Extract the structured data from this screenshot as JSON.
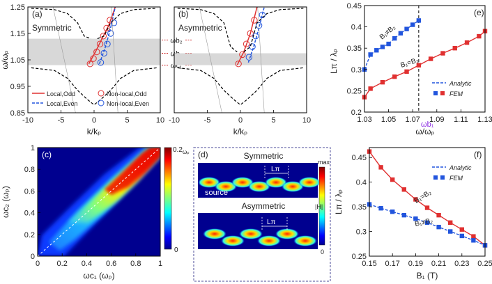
{
  "chart_data": [
    {
      "panel": "(a)",
      "type": "line",
      "title": "Symmetric",
      "xlabel": "k/kₚ",
      "ylabel": "ω/ωₚ",
      "xlim": [
        -10,
        10
      ],
      "ylim": [
        0.85,
        1.25
      ],
      "xticks": [
        "-10",
        "-5",
        "0",
        "5",
        "10"
      ],
      "yticks": [
        "0.85",
        "0.95",
        "1.05",
        "1.15",
        "1.25"
      ],
      "band": [
        1.03,
        1.13
      ],
      "band_labels": [
        "ωb₂",
        "ωb₁",
        "ωc₁"
      ],
      "band_label_values": [
        1.125,
        1.075,
        1.03
      ],
      "legend": [
        "Local,Odd",
        "Local,Even",
        "Non-local,Odd",
        "Non-local,Even"
      ],
      "series": [
        {
          "name": "Local,Odd",
          "style": "solid-red",
          "x": [
            -0.8,
            0.2,
            1.2,
            2.2,
            3.2
          ],
          "y": [
            1.035,
            1.08,
            1.13,
            1.18,
            1.25
          ]
        },
        {
          "name": "Local,Even",
          "style": "dashed-blue",
          "x": [
            0.8,
            1.6,
            2.4,
            3.2
          ],
          "y": [
            1.035,
            1.09,
            1.16,
            1.25
          ]
        },
        {
          "name": "Non-local,Odd",
          "style": "circle-red",
          "x": [
            -0.6,
            -0.1,
            0.4,
            0.9,
            1.4,
            1.9,
            2.4
          ],
          "y": [
            1.035,
            1.055,
            1.08,
            1.11,
            1.14,
            1.17,
            1.2
          ]
        },
        {
          "name": "Non-local,Even",
          "style": "circle-blue",
          "x": [
            1.0,
            1.5,
            2.0,
            2.5,
            3.0
          ],
          "y": [
            1.04,
            1.075,
            1.11,
            1.15,
            1.19
          ]
        },
        {
          "name": "upper-band-left",
          "style": "dashed-black",
          "x": [
            -9.5,
            -6,
            -4,
            -2.5,
            -1.5,
            -0.5
          ],
          "y": [
            1.245,
            1.24,
            1.225,
            1.19,
            1.14,
            1.13
          ]
        },
        {
          "name": "upper-band-right",
          "style": "dashed-black",
          "x": [
            0.5,
            1.5,
            2.5,
            4,
            6,
            9.5
          ],
          "y": [
            1.13,
            1.14,
            1.19,
            1.225,
            1.24,
            1.245
          ]
        },
        {
          "name": "lower-band",
          "style": "dashed-black",
          "x": [
            -9.5,
            -6,
            -4,
            -2.5,
            -1,
            0,
            1,
            2.5,
            4,
            6,
            9.5
          ],
          "y": [
            1.02,
            1.01,
            0.98,
            0.935,
            0.9,
            0.88,
            0.9,
            0.935,
            0.98,
            1.01,
            1.02
          ]
        },
        {
          "name": "light-line-1",
          "style": "thin-gray",
          "x": [
            -6.2,
            -2.8
          ],
          "y": [
            1.25,
            0.85
          ]
        },
        {
          "name": "light-line-2",
          "style": "thin-gray",
          "x": [
            2.6,
            3.6
          ],
          "y": [
            1.25,
            0.85
          ]
        }
      ]
    },
    {
      "panel": "(b)",
      "type": "line",
      "title": "Asymmetric",
      "xlabel": "k/kₚ",
      "xlim": [
        -10,
        10
      ],
      "ylim": [
        0.85,
        1.25
      ],
      "xticks": [
        "-10",
        "-5",
        "0",
        "5",
        "10"
      ],
      "band": [
        1.03,
        1.075
      ],
      "series": [
        {
          "name": "Local,Odd",
          "style": "solid-red",
          "x": [
            -0.5,
            0.5,
            1.5,
            2.5
          ],
          "y": [
            1.03,
            1.08,
            1.15,
            1.25
          ]
        },
        {
          "name": "Local,Even",
          "style": "dashed-blue",
          "x": [
            1.2,
            2.0,
            2.8,
            3.6
          ],
          "y": [
            1.04,
            1.1,
            1.17,
            1.25
          ]
        },
        {
          "name": "Non-local,Odd",
          "style": "circle-red",
          "x": [
            -0.3,
            0.3,
            0.9,
            1.5,
            2.1
          ],
          "y": [
            1.035,
            1.07,
            1.11,
            1.15,
            1.2
          ]
        },
        {
          "name": "Non-local,Even",
          "style": "circle-blue",
          "x": [
            1.3,
            1.8,
            2.3,
            2.8,
            3.3
          ],
          "y": [
            1.06,
            1.1,
            1.14,
            1.18,
            1.22
          ]
        },
        {
          "name": "upper-band-left",
          "style": "dashed-black",
          "x": [
            -9.5,
            -6,
            -4,
            -2.5,
            -1.5,
            -0.5
          ],
          "y": [
            1.245,
            1.24,
            1.225,
            1.19,
            1.1,
            1.08
          ]
        },
        {
          "name": "upper-band-right",
          "style": "dashed-black",
          "x": [
            0.5,
            1.5,
            2.5,
            4,
            6,
            9.5
          ],
          "y": [
            1.08,
            1.1,
            1.19,
            1.225,
            1.24,
            1.245
          ]
        },
        {
          "name": "lower-band",
          "style": "dashed-black",
          "x": [
            -9.5,
            -6,
            -4,
            -2.5,
            -1,
            0,
            1,
            2.5,
            4,
            6,
            9.5
          ],
          "y": [
            1.02,
            1.01,
            0.98,
            0.935,
            0.9,
            0.88,
            0.9,
            0.935,
            0.98,
            1.01,
            1.02
          ]
        },
        {
          "name": "light-line-1",
          "style": "thin-gray",
          "x": [
            -6.2,
            -2.8
          ],
          "y": [
            1.25,
            0.85
          ]
        },
        {
          "name": "light-line-2",
          "style": "thin-gray",
          "x": [
            2.6,
            3.6
          ],
          "y": [
            1.25,
            0.85
          ]
        }
      ]
    },
    {
      "panel": "(e)",
      "type": "line",
      "xlabel": "ω/ωₚ",
      "ylabel": "Lπ / λₚ",
      "xlim": [
        1.03,
        1.13
      ],
      "ylim": [
        0.2,
        0.45
      ],
      "xticks": [
        "1.03",
        "1.05",
        "1.07",
        "1.09",
        "1.11",
        "1.13"
      ],
      "yticks": [
        "0.2",
        "0.25",
        "0.3",
        "0.35",
        "0.4",
        "0.45"
      ],
      "vline": 1.075,
      "vline_label": "ωb₁",
      "annotations": [
        "B₁≠B₂",
        "B₁=B₂"
      ],
      "legend": [
        "Analytic",
        "FEM"
      ],
      "series": [
        {
          "name": "B1≠B2",
          "color": "#2255dd",
          "x": [
            1.03,
            1.035,
            1.04,
            1.045,
            1.05,
            1.055,
            1.06,
            1.065,
            1.07,
            1.075
          ],
          "y": [
            0.3,
            0.335,
            0.345,
            0.353,
            0.36,
            0.373,
            0.385,
            0.395,
            0.405,
            0.415
          ]
        },
        {
          "name": "B1=B2",
          "color": "#e03030",
          "x": [
            1.03,
            1.035,
            1.045,
            1.055,
            1.065,
            1.075,
            1.085,
            1.095,
            1.105,
            1.115,
            1.125,
            1.13
          ],
          "y": [
            0.235,
            0.255,
            0.27,
            0.283,
            0.295,
            0.31,
            0.325,
            0.338,
            0.35,
            0.363,
            0.378,
            0.39
          ]
        }
      ]
    },
    {
      "panel": "(f)",
      "type": "line",
      "xlabel": "B₁ (T)",
      "ylabel": "Lπ / λₚ",
      "xlim": [
        0.15,
        0.25
      ],
      "ylim": [
        0.25,
        0.47
      ],
      "xticks": [
        "0.15",
        "0.17",
        "0.19",
        "0.21",
        "0.23",
        "0.25"
      ],
      "yticks": [
        "0.25",
        "0.3",
        "0.35",
        "0.4",
        "0.45"
      ],
      "annotations": [
        "B₁=B₂",
        "B₁≠B₂"
      ],
      "legend": [
        "Analytic",
        "FEM"
      ],
      "series": [
        {
          "name": "B1=B2",
          "color": "#e03030",
          "x": [
            0.15,
            0.16,
            0.17,
            0.18,
            0.19,
            0.2,
            0.21,
            0.22,
            0.23,
            0.24,
            0.25
          ],
          "y": [
            0.462,
            0.43,
            0.405,
            0.385,
            0.365,
            0.348,
            0.333,
            0.318,
            0.304,
            0.29,
            0.272
          ]
        },
        {
          "name": "B1≠B2",
          "color": "#2255dd",
          "x": [
            0.15,
            0.16,
            0.17,
            0.18,
            0.19,
            0.2,
            0.21,
            0.22,
            0.23,
            0.24,
            0.25
          ],
          "y": [
            0.355,
            0.347,
            0.34,
            0.333,
            0.326,
            0.318,
            0.309,
            0.3,
            0.291,
            0.282,
            0.272
          ]
        }
      ]
    },
    {
      "panel": "(c)",
      "type": "heatmap",
      "xlabel": "ωc₁ (ωₚ)",
      "ylabel": "ωc₂ (ωₚ)",
      "xlim": [
        0,
        1
      ],
      "ylim": [
        0,
        1
      ],
      "xticks": [
        "0",
        "0.2",
        "0.4",
        "0.6",
        "0.8",
        "1"
      ],
      "yticks": [
        "0",
        "0.2",
        "0.4",
        "0.6",
        "0.8",
        "1"
      ],
      "colorbar": {
        "max_label": "0.2",
        "max_unit": "ωₚ",
        "min_label": "0"
      }
    }
  ],
  "panel_d": {
    "label": "(d)",
    "symmetric_title": "Symmetric",
    "asymmetric_title": "Asymmetric",
    "source_label": "source",
    "lpi_label": "Lπ",
    "colorbar_max": "max",
    "colorbar_min": "0",
    "colorbar_quantity": "|H|"
  },
  "colors": {
    "red": "#e03030",
    "blue": "#2255dd",
    "band": "#d8d8d8"
  }
}
